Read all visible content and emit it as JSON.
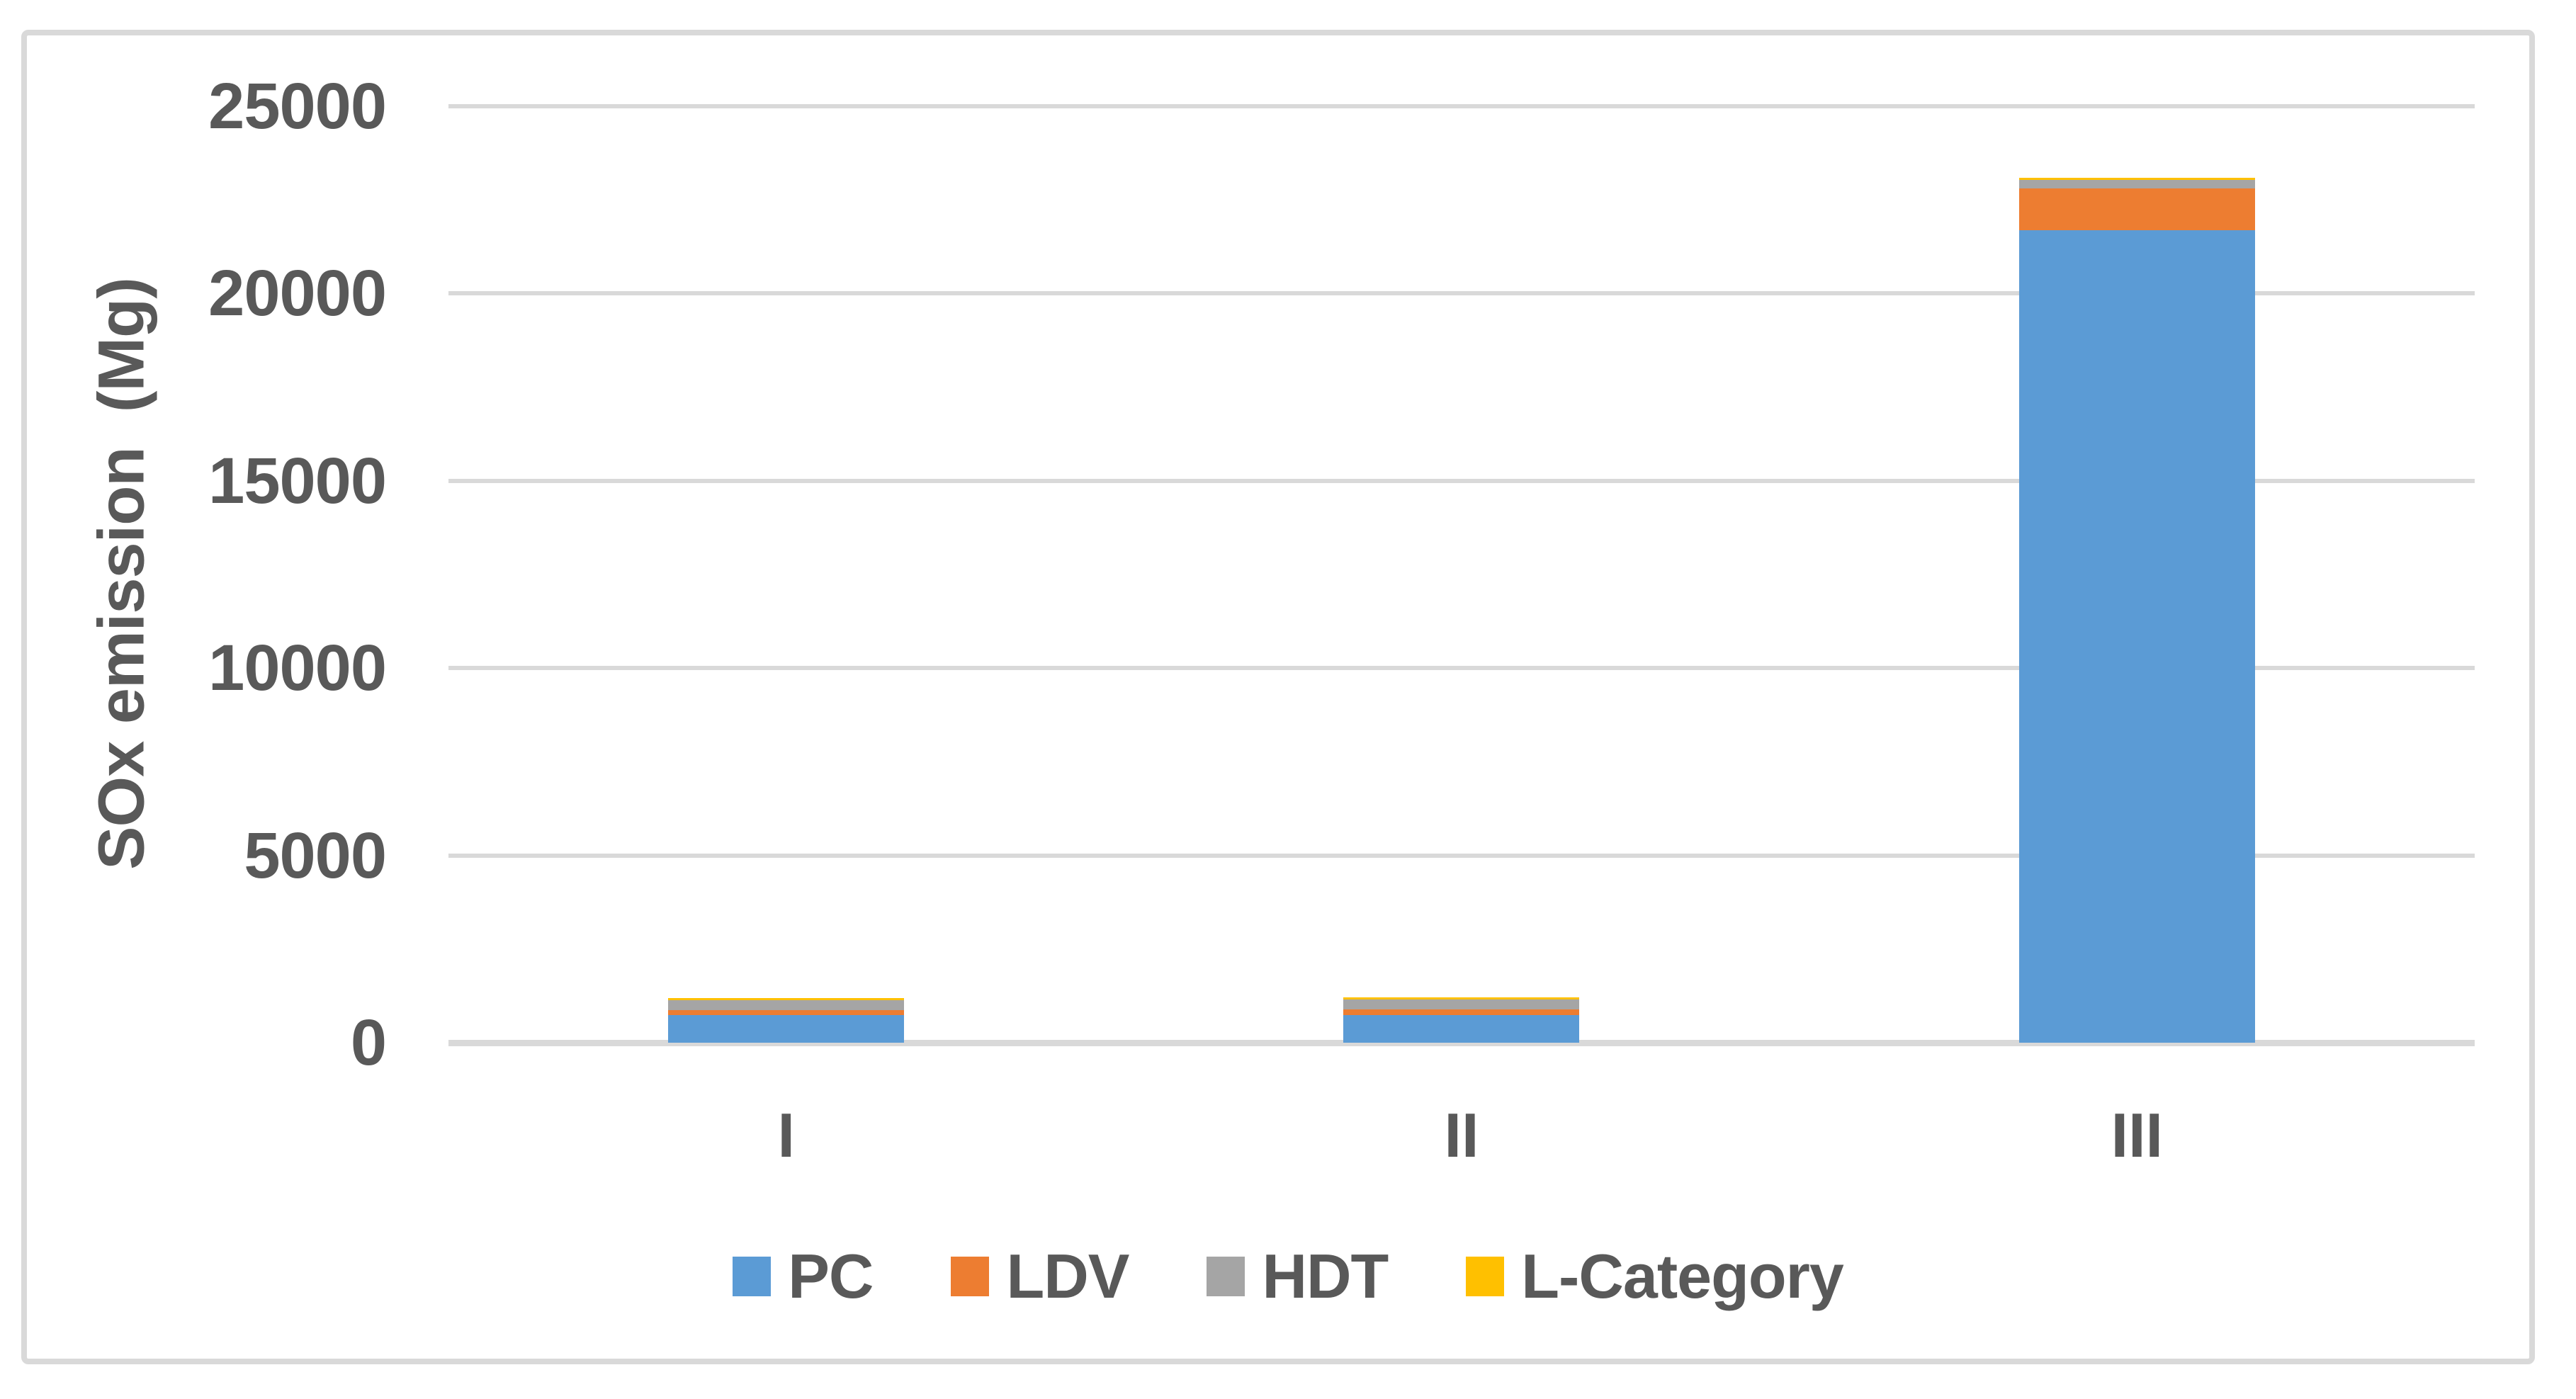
{
  "figure": {
    "background": "#FFFFFF",
    "border_color": "#D9D9D9"
  },
  "style": {
    "axis_text_color": "#595959",
    "gridline_color": "#D9D9D9"
  },
  "chart_data": {
    "type": "bar",
    "stacked": true,
    "title": "",
    "xlabel": "",
    "ylabel": "SOx emission  (Mg)",
    "categories": [
      "I",
      "II",
      "III"
    ],
    "series": [
      {
        "name": "PC",
        "color": "#5B9BD5",
        "values": [
          740,
          735,
          21700
        ]
      },
      {
        "name": "LDV",
        "color": "#ED7D31",
        "values": [
          130,
          150,
          1100
        ]
      },
      {
        "name": "HDT",
        "color": "#A5A5A5",
        "values": [
          260,
          265,
          240
        ]
      },
      {
        "name": "L-Category",
        "color": "#FFC000",
        "values": [
          60,
          70,
          50
        ]
      }
    ],
    "ylim": [
      0,
      25000
    ],
    "ytick_interval": 5000,
    "yticks": [
      "0",
      "5000",
      "10000",
      "15000",
      "20000",
      "25000"
    ],
    "grid": true,
    "legend_position": "bottom"
  }
}
